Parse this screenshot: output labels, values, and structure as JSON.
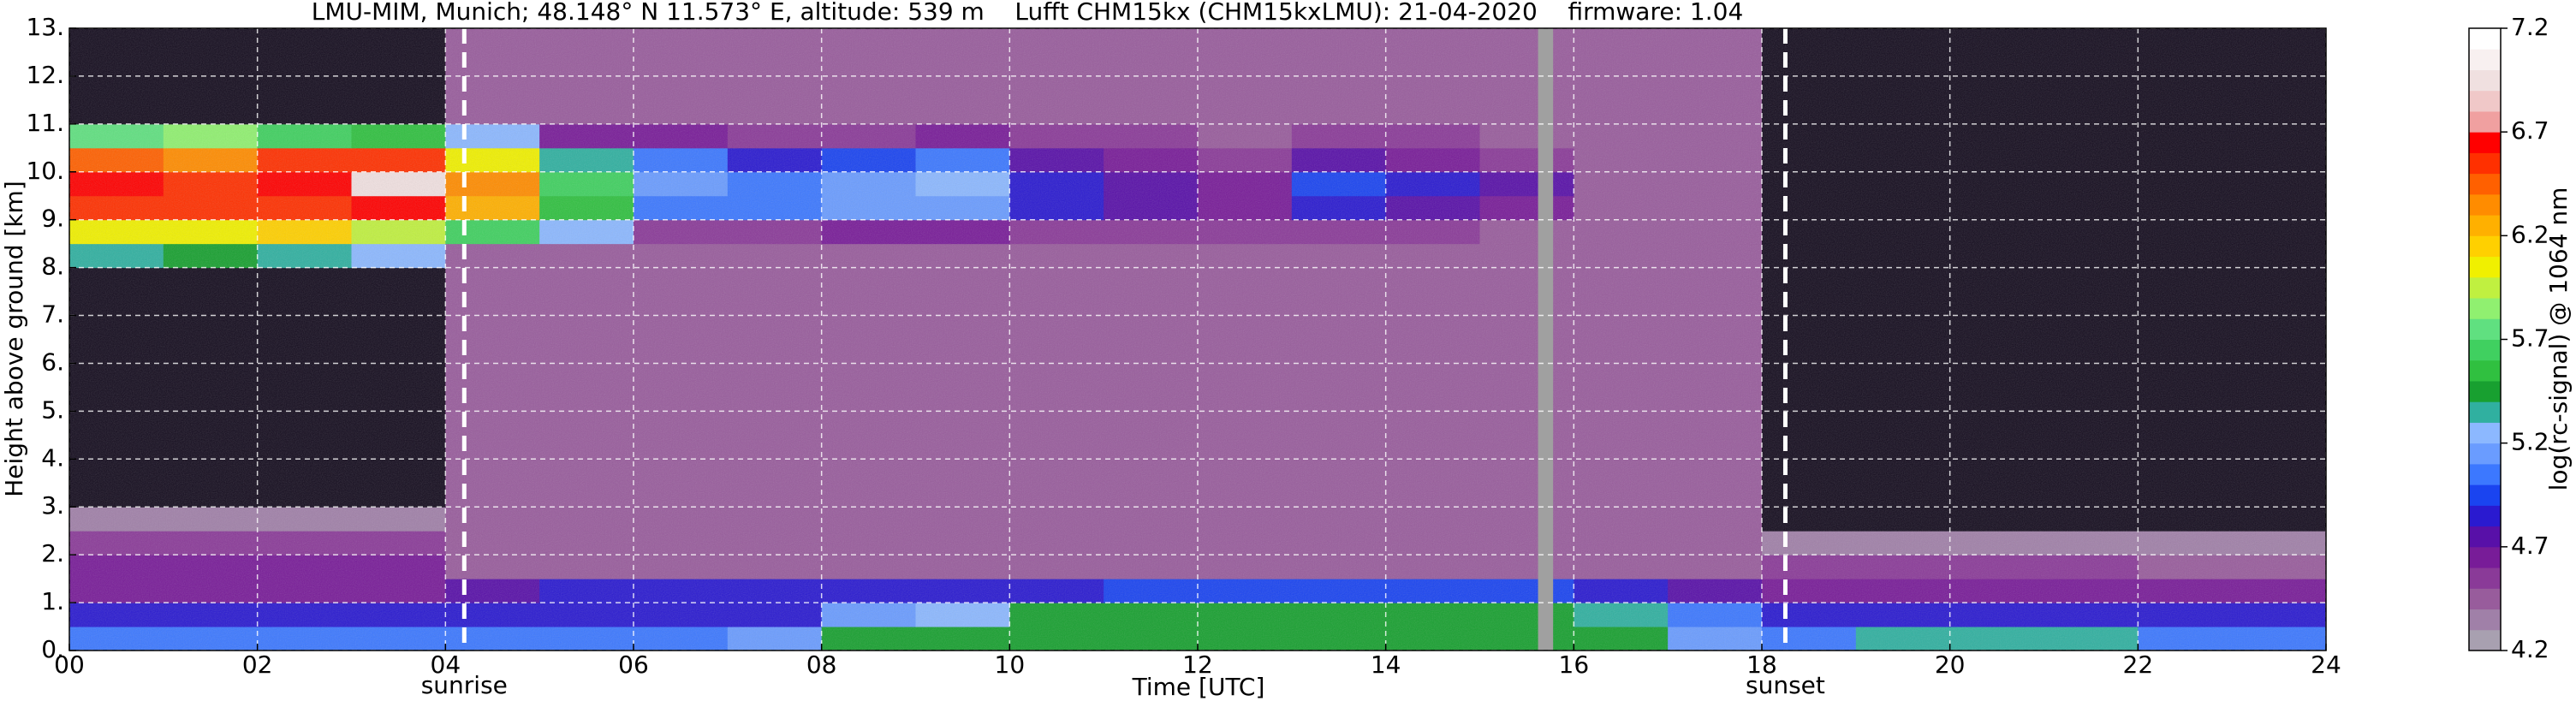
{
  "chart_data": {
    "type": "heatmap",
    "title": "LMU-MIM, Munich; 48.148° N 11.573° E, altitude: 539 m    Lufft CHM15kx (CHM15kxLMU): 21-04-2020    firmware: 1.04",
    "x_label": "Time [UTC]",
    "y_label": "Height above ground [km]",
    "colorbar_label": "log(rc-signal) @ 1064 nm",
    "xbins": [
      0,
      1,
      2,
      3,
      4,
      5,
      6,
      7,
      8,
      9,
      10,
      11,
      12,
      13,
      14,
      15,
      16,
      17,
      18,
      19,
      20,
      21,
      22,
      23,
      24
    ],
    "ybins": [
      0,
      0.5,
      1,
      1.5,
      2,
      2.5,
      3,
      8,
      8.5,
      9,
      9.5,
      10,
      10.5,
      11,
      13
    ],
    "z": [
      [
        5.0,
        5.0,
        5.0,
        5.0,
        5.0,
        5.0,
        5.0,
        5.1,
        5.4,
        5.4,
        5.4,
        5.4,
        5.4,
        5.4,
        5.4,
        5.4,
        5.4,
        5.1,
        5.0,
        5.3,
        5.3,
        5.3,
        5.0,
        5.0
      ],
      [
        4.8,
        4.8,
        4.8,
        4.8,
        4.8,
        4.8,
        4.8,
        4.8,
        5.1,
        5.2,
        5.4,
        5.4,
        5.4,
        5.4,
        5.4,
        5.4,
        5.3,
        5.0,
        4.8,
        4.8,
        4.8,
        4.8,
        4.8,
        4.8
      ],
      [
        4.6,
        4.6,
        4.6,
        4.6,
        4.7,
        4.8,
        4.8,
        4.8,
        4.8,
        4.8,
        4.8,
        4.9,
        4.9,
        4.9,
        4.9,
        4.9,
        4.8,
        4.7,
        4.6,
        4.6,
        4.6,
        4.6,
        4.6,
        4.6
      ],
      [
        4.6,
        4.6,
        4.6,
        4.6,
        4.4,
        4.4,
        4.4,
        4.4,
        4.4,
        4.4,
        4.4,
        4.4,
        4.4,
        4.4,
        4.4,
        4.4,
        4.4,
        4.4,
        4.5,
        4.5,
        4.5,
        4.5,
        4.4,
        4.4
      ],
      [
        4.5,
        4.5,
        4.5,
        4.5,
        4.4,
        4.4,
        4.4,
        4.4,
        4.4,
        4.4,
        4.4,
        4.4,
        4.4,
        4.4,
        4.4,
        4.4,
        4.4,
        4.4,
        4.3,
        4.3,
        4.3,
        4.3,
        4.3,
        4.3
      ],
      [
        4.3,
        4.3,
        4.3,
        4.3,
        4.4,
        4.4,
        4.4,
        4.4,
        4.4,
        4.4,
        4.4,
        4.4,
        4.4,
        4.4,
        4.4,
        4.4,
        4.4,
        4.4,
        4.1,
        4.1,
        4.1,
        4.1,
        4.1,
        4.1
      ],
      [
        4.1,
        4.1,
        4.1,
        4.1,
        4.4,
        4.4,
        4.4,
        4.4,
        4.4,
        4.4,
        4.4,
        4.4,
        4.4,
        4.4,
        4.4,
        4.4,
        4.4,
        4.4,
        4.1,
        4.1,
        4.1,
        4.1,
        4.1,
        4.1
      ],
      [
        5.3,
        5.4,
        5.3,
        5.2,
        4.4,
        4.4,
        4.4,
        4.4,
        4.4,
        4.4,
        4.4,
        4.4,
        4.4,
        4.4,
        4.4,
        4.4,
        4.4,
        4.4,
        4.1,
        4.1,
        4.1,
        4.1,
        4.1,
        4.1
      ],
      [
        6.0,
        6.0,
        6.1,
        5.9,
        5.6,
        5.2,
        4.5,
        4.5,
        4.6,
        4.6,
        4.5,
        4.5,
        4.5,
        4.5,
        4.5,
        4.4,
        4.4,
        4.4,
        4.1,
        4.1,
        4.1,
        4.1,
        4.1,
        4.1
      ],
      [
        6.5,
        6.5,
        6.5,
        6.6,
        6.2,
        5.5,
        5.0,
        5.0,
        5.1,
        5.1,
        4.8,
        4.7,
        4.6,
        4.8,
        4.7,
        4.6,
        4.4,
        4.4,
        4.1,
        4.1,
        4.1,
        4.1,
        4.1,
        4.1
      ],
      [
        6.6,
        6.5,
        6.6,
        6.9,
        6.3,
        5.6,
        5.1,
        5.0,
        5.1,
        5.2,
        4.8,
        4.7,
        4.6,
        4.9,
        4.8,
        4.7,
        4.4,
        4.4,
        4.1,
        4.1,
        4.1,
        4.1,
        4.1,
        4.1
      ],
      [
        6.4,
        6.3,
        6.5,
        6.5,
        6.0,
        5.3,
        5.0,
        4.8,
        4.9,
        5.0,
        4.7,
        4.6,
        4.5,
        4.7,
        4.6,
        4.5,
        4.4,
        4.4,
        4.1,
        4.1,
        4.1,
        4.1,
        4.1,
        4.1
      ],
      [
        5.7,
        5.8,
        5.6,
        5.5,
        5.2,
        4.6,
        4.6,
        4.5,
        4.5,
        4.6,
        4.5,
        4.5,
        4.4,
        4.5,
        4.5,
        4.4,
        4.4,
        4.4,
        4.1,
        4.1,
        4.1,
        4.1,
        4.1,
        4.1
      ],
      [
        4.1,
        4.1,
        4.1,
        4.1,
        4.4,
        4.4,
        4.4,
        4.4,
        4.4,
        4.4,
        4.4,
        4.4,
        4.4,
        4.4,
        4.4,
        4.4,
        4.4,
        4.4,
        4.1,
        4.1,
        4.1,
        4.1,
        4.1,
        4.1
      ]
    ],
    "xlim": [
      0,
      24
    ],
    "ylim": [
      0,
      13
    ],
    "zlim": [
      4.2,
      7.2
    ],
    "xticks": [
      {
        "value": 0,
        "label": "00"
      },
      {
        "value": 2,
        "label": "02"
      },
      {
        "value": 4,
        "label": "04"
      },
      {
        "value": 6,
        "label": "06"
      },
      {
        "value": 8,
        "label": "08"
      },
      10,
      12,
      14,
      16,
      18,
      20,
      22,
      24
    ],
    "yticks": [
      {
        "value": 0,
        "label": "0."
      },
      {
        "value": 1,
        "label": "1."
      },
      {
        "value": 2,
        "label": "2."
      },
      {
        "value": 3,
        "label": "3."
      },
      {
        "value": 4,
        "label": "4."
      },
      {
        "value": 5,
        "label": "5."
      },
      {
        "value": 6,
        "label": "6."
      },
      {
        "value": 7,
        "label": "7."
      },
      {
        "value": 8,
        "label": "8."
      },
      {
        "value": 9,
        "label": "9."
      },
      {
        "value": 10,
        "label": "10."
      },
      {
        "value": 11,
        "label": "11."
      },
      {
        "value": 12,
        "label": "12."
      },
      {
        "value": 13,
        "label": "13."
      }
    ],
    "zticks": [
      4.2,
      4.7,
      5.2,
      5.7,
      6.2,
      6.7,
      7.2
    ],
    "colors": [
      "#a8a0b0",
      "#a080a8",
      "#985c9c",
      "#8a3a98",
      "#781c98",
      "#5810a8",
      "#2a1ad0",
      "#1a44f0",
      "#3c78ff",
      "#6a9cff",
      "#8cb8ff",
      "#30b0a0",
      "#18a030",
      "#30c040",
      "#40d060",
      "#60e080",
      "#90f070",
      "#c0f040",
      "#f0f000",
      "#ffd000",
      "#ffb000",
      "#ff8c00",
      "#ff6000",
      "#ff3000",
      "#ff0000",
      "#f0a0a0",
      "#f0c8c8",
      "#f0e0e0",
      "#f8f0f0",
      "#ffffff"
    ],
    "under_color": "#140c1e",
    "grid": true,
    "data_gap": {
      "x": [
        15.62,
        15.78
      ],
      "color": "#a0a0a0"
    },
    "annotations": [
      {
        "x": 4.2,
        "label": "sunrise"
      },
      {
        "x": 18.25,
        "label": "sunset"
      }
    ]
  }
}
